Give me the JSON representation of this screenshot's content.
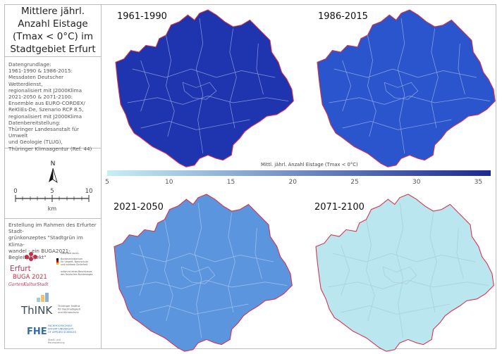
{
  "title": "Mittlere jährl. Anzahl Eistage (Tmax < 0°C) im Stadtgebiet Erfurt",
  "source_text": "Datengrundlage:\n1961-1990 & 1986-2015:\nMessdaten Deutscher Wetterdienst,\nregionalisiert mit J2000Klima\n2021-2050 & 2071-2100:\nEnsemble aus EURO-CORDEX/\nReKliEs-De, Szenario RCP 8.5,\nregionalisiert mit J2000Klima\nDatenbereitstellung:\nThüringer Landesanstalt für Umwelt\nund Geologie (TLUG),\nThüringer Klimaagentur (Ref. 44)",
  "north_label": "N",
  "scalebar": {
    "ticks": [
      "0",
      "5",
      "10"
    ],
    "unit": "km"
  },
  "credit_text": "Erstellung im Rahmen des Erfurter Stadt-\ngrünkonzeptes \"Stadtgrün im Klima-\nwandel - ein BUGA2021-Begleitprojekt\"",
  "logos": {
    "buga_line1": "Erfurt",
    "buga_line2": "BUGA 2021",
    "buga_line3": "GartenKulturStadt",
    "bmu_text": "Gefördert durch:\nBundesministerium\nfür Umwelt, Naturschutz\nund nukleare Sicherheit\naufgrund eines Beschlusses\ndes Deutschen Bundestages",
    "think_name": "ThINK",
    "think_sub": "Thüringer Institut\nfür Nachhaltigkeit\nund Klimaschutz",
    "fhe_name": "FHE",
    "fhe_sub": "FACHHOCHSCHULE\nERFURT UNIVERSITY\nOF APPLIED SCIENCES",
    "fhe_sub2": "Stadt- und\nRaumplanung"
  },
  "maps": [
    {
      "period": "1961-1990",
      "fill": "#1f35b0"
    },
    {
      "period": "1986-2015",
      "fill": "#2a55cc"
    },
    {
      "period": "2021-2050",
      "fill": "#5b95de"
    },
    {
      "period": "2071-2100",
      "fill": "#b9e6ef"
    }
  ],
  "legend": {
    "title": "Mittl. jährl. Anzahl Eistage (Tmax < 0°C)",
    "ticks": [
      "5",
      "10",
      "15",
      "20",
      "25",
      "30",
      "35"
    ],
    "range": [
      5,
      36
    ],
    "colors": [
      "#c7eef5",
      "#1a2a8f"
    ]
  },
  "colors": {
    "boundary": "#d9314a",
    "district": "#dce6f5"
  }
}
